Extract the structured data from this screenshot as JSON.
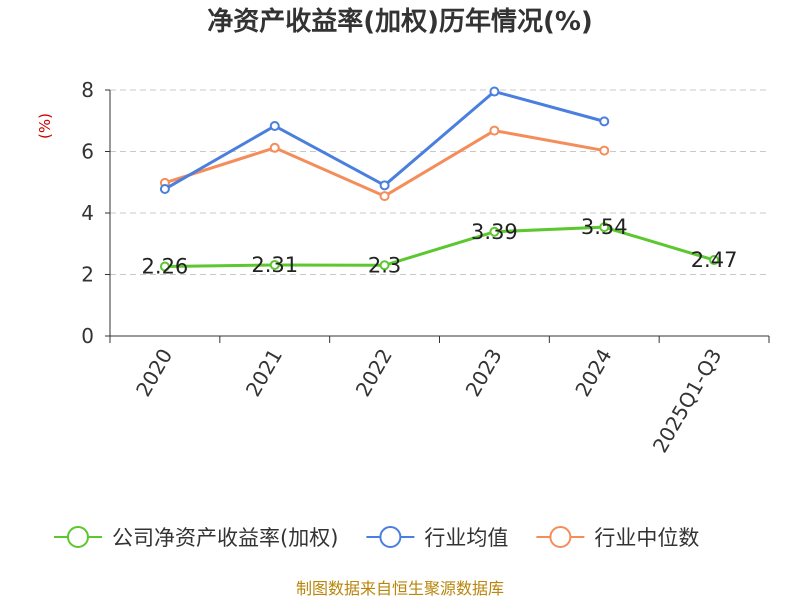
{
  "chart_data": {
    "type": "line",
    "title": "净资产收益率(加权)历年情况(%)",
    "ylabel": "(%)",
    "xlabel": "",
    "ylim": [
      0,
      8
    ],
    "yticks": [
      0,
      2,
      4,
      6,
      8
    ],
    "grid": true,
    "legend_position": "bottom",
    "categories": [
      "2020",
      "2021",
      "2022",
      "2023",
      "2024",
      "2025Q1-Q3"
    ],
    "series": [
      {
        "name": "公司净资产收益率(加权)",
        "color": "#5cc72e",
        "values": [
          2.26,
          2.31,
          2.3,
          3.39,
          3.54,
          2.47
        ],
        "data_labels": [
          "2.26",
          "2.31",
          "2.3",
          "3.39",
          "3.54",
          "2.47"
        ]
      },
      {
        "name": "行业均值",
        "color": "#4a7fde",
        "values": [
          4.78,
          6.83,
          4.9,
          7.95,
          6.98,
          null
        ]
      },
      {
        "name": "行业中位数",
        "color": "#f58d5a",
        "values": [
          4.98,
          6.12,
          4.55,
          6.68,
          6.03,
          null
        ]
      }
    ]
  },
  "footer": {
    "source": "制图数据来自恒生聚源数据库"
  }
}
